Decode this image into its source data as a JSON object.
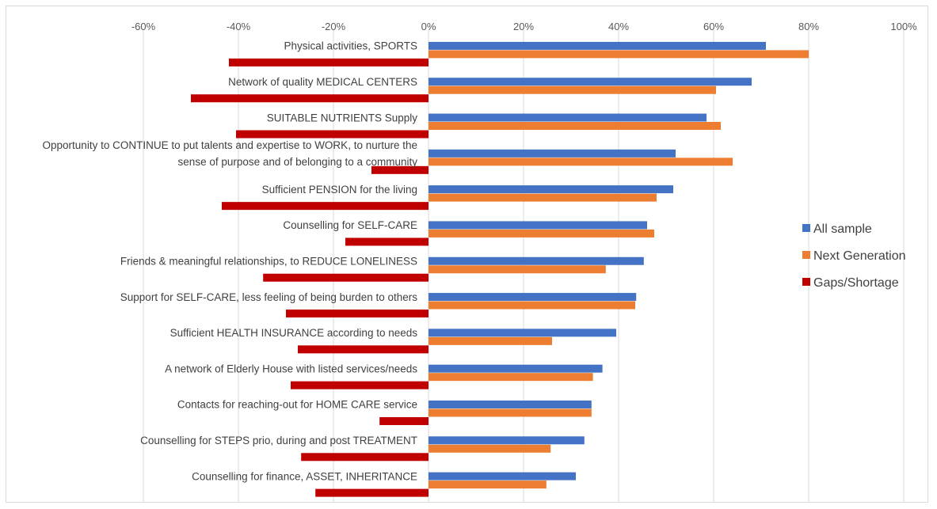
{
  "chart_data": {
    "type": "bar",
    "orientation": "horizontal",
    "grid": true,
    "legend_position": "right",
    "xlim": [
      -0.7,
      1.0
    ],
    "x_ticks": [
      "-60%",
      "-40%",
      "-20%",
      "0%",
      "20%",
      "40%",
      "60%",
      "80%",
      "100%"
    ],
    "x_tick_values": [
      -0.6,
      -0.4,
      -0.2,
      0,
      0.2,
      0.4,
      0.6,
      0.8,
      1.0
    ],
    "categories": [
      "Physical activities, SPORTS",
      "Network of quality MEDICAL CENTERS",
      "SUITABLE NUTRIENTS Supply",
      [
        "Opportunity to CONTINUE to put talents and expertise to WORK, to nurture the",
        "sense of purpose and of belonging to a community"
      ],
      "Sufficient PENSION for the living",
      "Counselling for SELF-CARE",
      "Friends & meaningful relationships, to REDUCE LONELINESS",
      "Support for SELF-CARE, less feeling of being burden to others",
      "Sufficient HEALTH INSURANCE according to needs",
      "A network of Elderly House with listed services/needs",
      "Contacts for reaching-out for HOME CARE service",
      "Counselling for STEPS prio, during and post TREATMENT",
      "Counselling for finance, ASSET, INHERITANCE"
    ],
    "series": [
      {
        "name": "All sample",
        "color": "#4472c4",
        "values": [
          0.71,
          0.68,
          0.585,
          0.52,
          0.515,
          0.46,
          0.453,
          0.437,
          0.395,
          0.366,
          0.343,
          0.328,
          0.31
        ]
      },
      {
        "name": "Next Generation",
        "color": "#ed7d31",
        "values": [
          0.8,
          0.605,
          0.615,
          0.64,
          0.48,
          0.475,
          0.373,
          0.435,
          0.26,
          0.346,
          0.343,
          0.257,
          0.248
        ]
      },
      {
        "name": "Gaps/Shortage",
        "color": "#c00000",
        "values": [
          -0.42,
          -0.5,
          -0.405,
          -0.12,
          -0.435,
          -0.175,
          -0.348,
          -0.3,
          -0.275,
          -0.29,
          -0.103,
          -0.268,
          -0.238
        ]
      }
    ]
  }
}
